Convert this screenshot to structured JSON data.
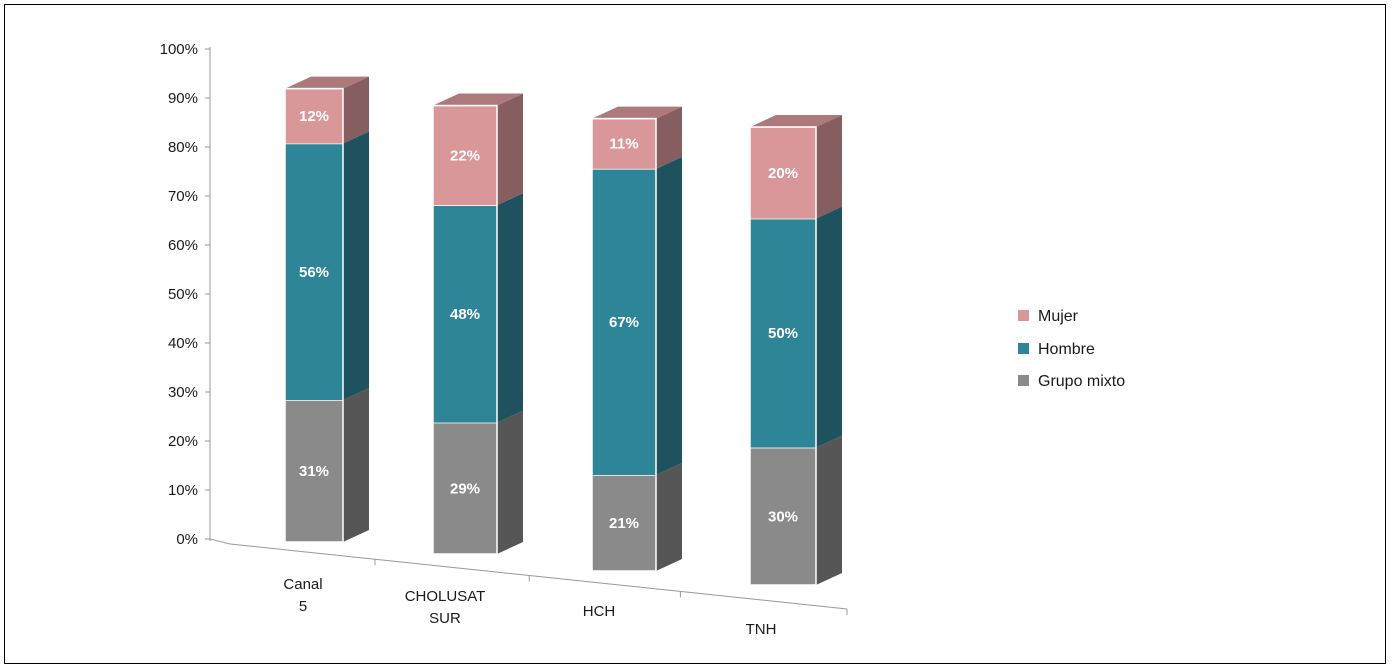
{
  "chart_data": {
    "type": "bar",
    "stacked": true,
    "percent": true,
    "three_d": true,
    "categories": [
      "Canal 5",
      "CHOLUSAT SUR",
      "HCH",
      "TNH"
    ],
    "series": [
      {
        "name": "Grupo mixto",
        "values": [
          31,
          29,
          21,
          30
        ],
        "labels": [
          "31%",
          "29%",
          "21%",
          "30%"
        ],
        "color": "#8a8a8a"
      },
      {
        "name": "Hombre",
        "values": [
          56,
          48,
          67,
          50
        ],
        "labels": [
          "56%",
          "48%",
          "67%",
          "50%"
        ],
        "color": "#2e8597"
      },
      {
        "name": "Mujer",
        "values": [
          12,
          22,
          11,
          20
        ],
        "labels": [
          "12%",
          "22%",
          "11%",
          "20%"
        ],
        "color": "#d9979a"
      }
    ],
    "yticks": [
      "0%",
      "10%",
      "20%",
      "30%",
      "40%",
      "50%",
      "60%",
      "70%",
      "80%",
      "90%",
      "100%"
    ],
    "ylim": [
      0,
      100
    ],
    "legend": {
      "position": "right",
      "entries": [
        "Mujer",
        "Hombre",
        "Grupo mixto"
      ]
    }
  }
}
